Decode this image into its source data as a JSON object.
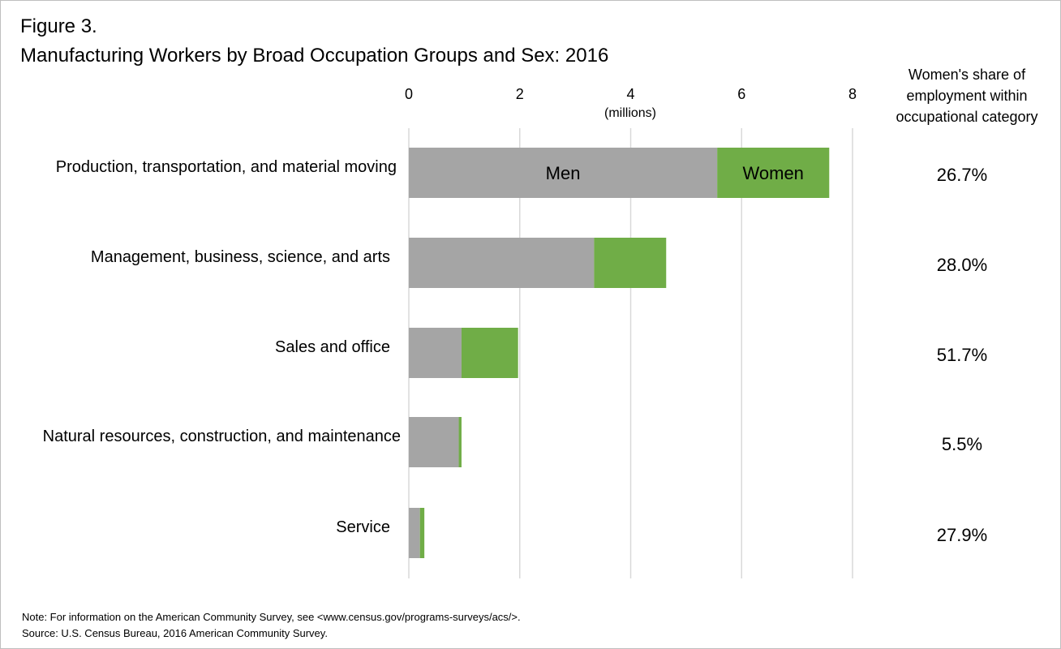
{
  "figure_label": "Figure 3.",
  "title": "Manufacturing Workers by Broad Occupation Groups and Sex: 2016",
  "share_header": [
    "Women's share of",
    "employment within",
    "occupational category"
  ],
  "notes": {
    "note": "Note: For information on the American Community Survey, see <www.census.gov/programs-surveys/acs/>.",
    "source": "Source: U.S. Census Bureau, 2016 American Community Survey."
  },
  "colors": {
    "men": "#a5a5a5",
    "women": "#70ad47",
    "gridline": "#d9d9d9"
  },
  "chart_data": {
    "type": "bar",
    "orientation": "horizontal",
    "stacked": true,
    "axis_unit_label": "(millions)",
    "xlim": [
      0,
      8
    ],
    "ticks": [
      0,
      2,
      4,
      6,
      8
    ],
    "grid": true,
    "categories": [
      "Production, transportation, and material moving",
      "Management, business, science, and arts",
      "Sales and office",
      "Natural resources, construction, and maintenance",
      "Service"
    ],
    "series": [
      {
        "name": "Men",
        "values": [
          5.56,
          3.34,
          0.95,
          0.9,
          0.2
        ]
      },
      {
        "name": "Women",
        "values": [
          2.02,
          1.3,
          1.02,
          0.05,
          0.08
        ]
      }
    ],
    "womens_share": [
      "26.7%",
      "28.0%",
      "51.7%",
      "5.5%",
      "27.9%"
    ]
  }
}
